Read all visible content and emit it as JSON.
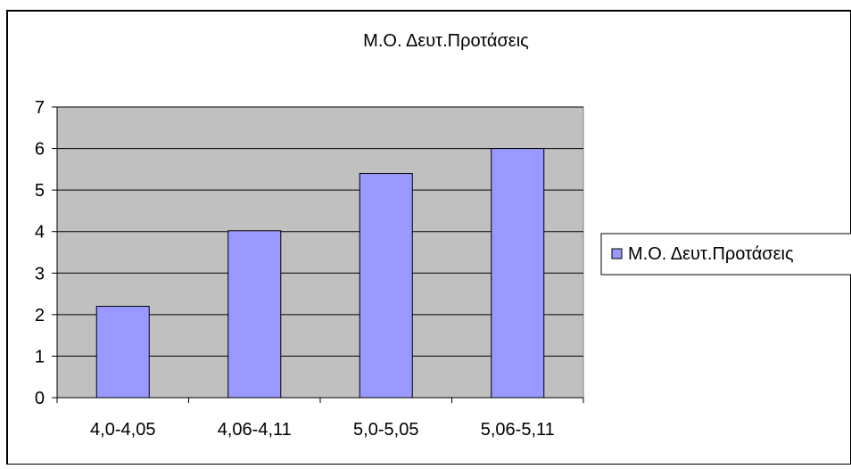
{
  "chart_data": {
    "type": "bar",
    "title": "Μ.Ο. Δευτ.Προτάσεις",
    "xlabel": "",
    "ylabel": "",
    "categories": [
      "4,0-4,05",
      "4,06-4,11",
      "5,0-5,05",
      "5,06-5,11"
    ],
    "series": [
      {
        "name": "Μ.Ο. Δευτ.Προτάσεις",
        "values": [
          2.2,
          4.02,
          5.4,
          6.0
        ]
      }
    ],
    "ylim": [
      0,
      7
    ],
    "yticks": [
      "0",
      "1",
      "2",
      "3",
      "4",
      "5",
      "6",
      "7"
    ],
    "grid": true,
    "legend": "right",
    "colors": {
      "bar_fill": "#9999ff",
      "plot_background": "#c0c0c0",
      "gridline": "#000000",
      "border": "#000000"
    }
  }
}
